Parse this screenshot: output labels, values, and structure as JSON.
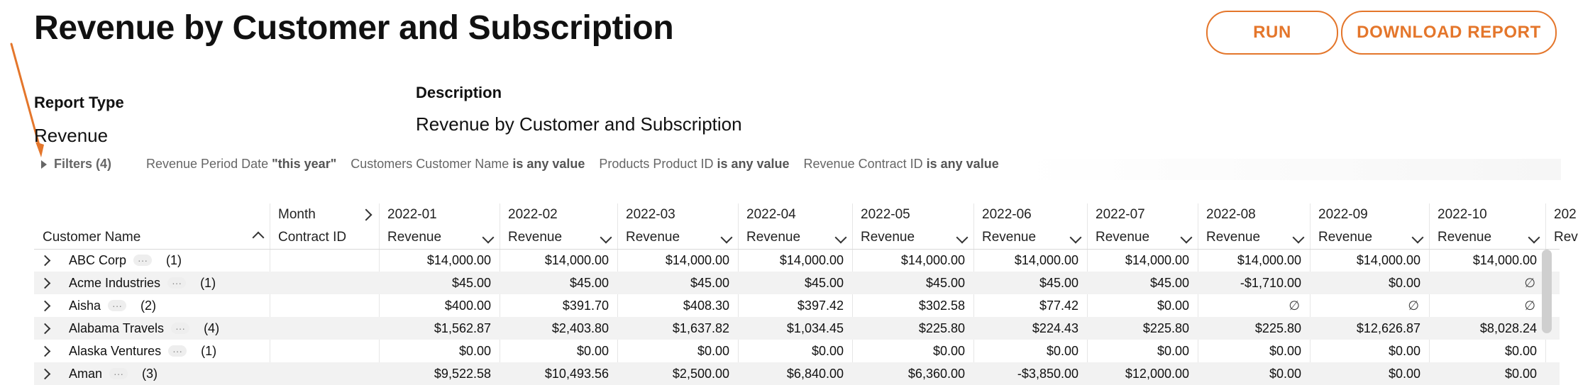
{
  "header": {
    "title": "Revenue by Customer and Subscription",
    "run_label": "RUN",
    "download_label": "DOWNLOAD REPORT"
  },
  "report": {
    "type_label": "Report Type",
    "type_value": "Revenue",
    "description_label": "Description",
    "description_value": "Revenue by Customer and Subscription"
  },
  "filters": {
    "title": "Filters (4)",
    "items": [
      {
        "name": "Revenue Period Date",
        "op": "\"this year\""
      },
      {
        "name": "Customers Customer Name",
        "op": "is any value"
      },
      {
        "name": "Products Product ID",
        "op": "is any value"
      },
      {
        "name": "Revenue Contract ID",
        "op": "is any value"
      }
    ]
  },
  "table": {
    "header_row1": {
      "month_label": "Month",
      "months": [
        "2022-01",
        "2022-02",
        "2022-03",
        "2022-04",
        "2022-05",
        "2022-06",
        "2022-07",
        "2022-08",
        "2022-09",
        "2022-10",
        "202"
      ]
    },
    "header_row2": {
      "customer_label": "Customer Name",
      "contract_label": "Contract ID",
      "revenue_label": "Revenue",
      "revenue_partial": "Rev"
    },
    "rows": [
      {
        "name": "ABC Corp",
        "count": "(1)",
        "values": [
          "$14,000.00",
          "$14,000.00",
          "$14,000.00",
          "$14,000.00",
          "$14,000.00",
          "$14,000.00",
          "$14,000.00",
          "$14,000.00",
          "$14,000.00",
          "$14,000.00"
        ]
      },
      {
        "name": "Acme Industries",
        "count": "(1)",
        "values": [
          "$45.00",
          "$45.00",
          "$45.00",
          "$45.00",
          "$45.00",
          "$45.00",
          "$45.00",
          "-$1,710.00",
          "$0.00",
          "∅"
        ]
      },
      {
        "name": "Aisha",
        "count": "(2)",
        "values": [
          "$400.00",
          "$391.70",
          "$408.30",
          "$397.42",
          "$302.58",
          "$77.42",
          "$0.00",
          "∅",
          "∅",
          "∅"
        ]
      },
      {
        "name": "Alabama Travels",
        "count": "(4)",
        "values": [
          "$1,562.87",
          "$2,403.80",
          "$1,637.82",
          "$1,034.45",
          "$225.80",
          "$224.43",
          "$225.80",
          "$225.80",
          "$12,626.87",
          "$8,028.24"
        ]
      },
      {
        "name": "Alaska Ventures",
        "count": "(1)",
        "values": [
          "$0.00",
          "$0.00",
          "$0.00",
          "$0.00",
          "$0.00",
          "$0.00",
          "$0.00",
          "$0.00",
          "$0.00",
          "$0.00"
        ]
      },
      {
        "name": "Aman",
        "count": "(3)",
        "values": [
          "$9,522.58",
          "$10,493.56",
          "$2,500.00",
          "$6,840.00",
          "$6,360.00",
          "-$3,850.00",
          "$12,000.00",
          "$0.00",
          "$0.00",
          "$0.00"
        ]
      }
    ]
  },
  "colors": {
    "accent": "#E4762B",
    "row_alt": "#F2F2F2"
  }
}
